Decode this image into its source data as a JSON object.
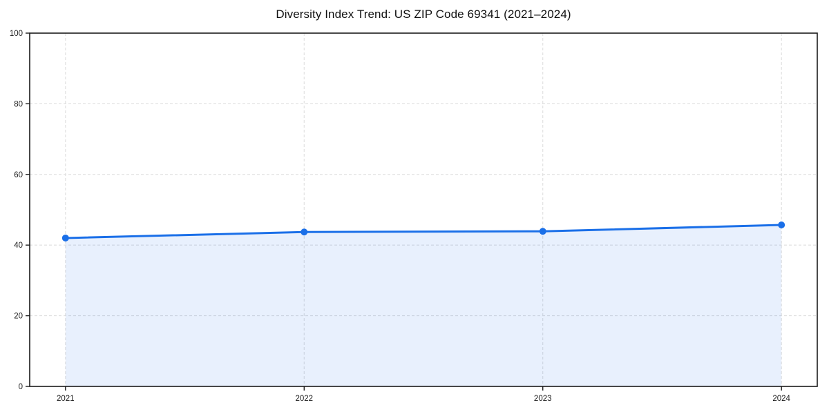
{
  "figure": {
    "background": "#ffffff"
  },
  "chart_data": {
    "type": "area",
    "title": "Diversity Index Trend: US ZIP Code 69341 (2021–2024)",
    "x": [
      2021,
      2022,
      2023,
      2024
    ],
    "categories": [
      "2021",
      "2022",
      "2023",
      "2024"
    ],
    "series": [
      {
        "name": "Diversity Index",
        "values": [
          42.0,
          43.7,
          43.9,
          45.7
        ]
      }
    ],
    "values": [
      42.0,
      43.7,
      43.9,
      45.7
    ],
    "xlabel": "",
    "ylabel": "",
    "ylim": [
      0,
      100
    ],
    "yticks": [
      0,
      20,
      40,
      60,
      80,
      100
    ],
    "ytick_labels": [
      "0",
      "20",
      "40",
      "60",
      "80",
      "100"
    ],
    "grid": true,
    "grid_style": "dashed",
    "legend_position": "none",
    "colors": {
      "line": "#1a6fe8",
      "marker": "#1a6fe8",
      "fill": "#1a6fe8",
      "fill_opacity": 0.1,
      "grid": "#dedede",
      "axis": "#1a1a1a",
      "tick_text": "#1a1a1a",
      "title_text": "#111111"
    }
  }
}
